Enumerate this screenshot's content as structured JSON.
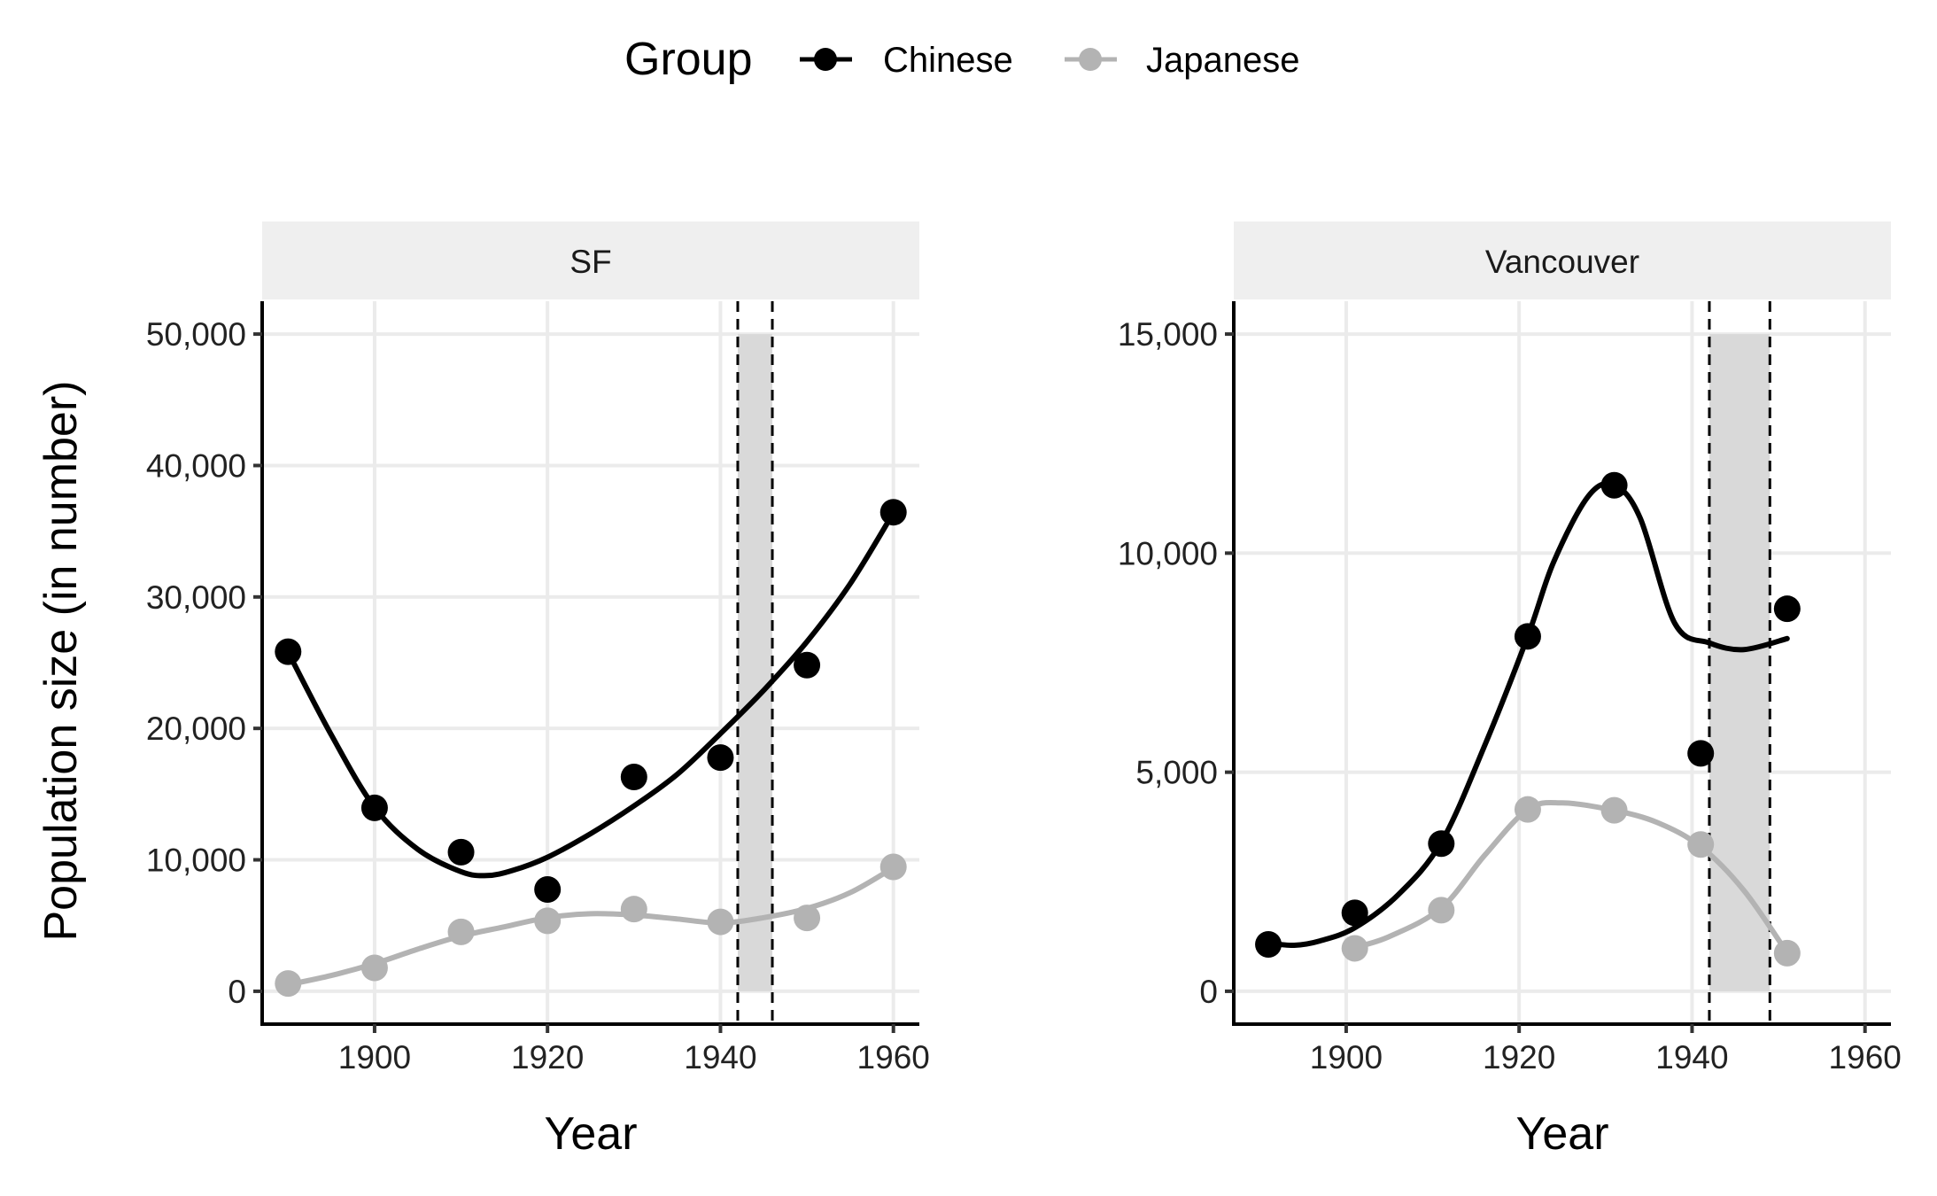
{
  "legend": {
    "title": "Group",
    "items": [
      {
        "label": "Chinese",
        "color": "#000000"
      },
      {
        "label": "Japanese",
        "color": "#b3b3b3"
      }
    ]
  },
  "ylabel": "Population size (in number)",
  "chart_data": [
    {
      "type": "scatter",
      "facet": "SF",
      "xlabel": "Year",
      "ylabel": "Population size (in number)",
      "xlim": [
        1887,
        1963
      ],
      "ylim": [
        -2500,
        52500
      ],
      "xticks": [
        1900,
        1920,
        1940,
        1960
      ],
      "yticks": [
        0,
        10000,
        20000,
        30000,
        40000,
        50000
      ],
      "ytick_labels": [
        "0",
        "10,000",
        "20,000",
        "30,000",
        "40,000",
        "50,000"
      ],
      "shaded_period": [
        1942,
        1946
      ],
      "grid": true,
      "series": [
        {
          "name": "Chinese",
          "color": "#000000",
          "x": [
            1890,
            1900,
            1910,
            1920,
            1930,
            1940,
            1950,
            1960
          ],
          "y": [
            25833,
            13954,
            10582,
            7744,
            16303,
            17782,
            24813,
            36445
          ],
          "smooth_x": [
            1890,
            1895,
            1900,
            1905,
            1910,
            1913,
            1916,
            1920,
            1925,
            1930,
            1935,
            1940,
            1945,
            1950,
            1955,
            1960
          ],
          "smooth_y": [
            25800,
            19500,
            14000,
            10800,
            9100,
            8800,
            9200,
            10200,
            12000,
            14100,
            16500,
            19600,
            22900,
            26600,
            31000,
            36400
          ]
        },
        {
          "name": "Japanese",
          "color": "#b3b3b3",
          "x": [
            1890,
            1900,
            1910,
            1920,
            1930,
            1940,
            1950,
            1960
          ],
          "y": [
            590,
            1781,
            4518,
            5358,
            6250,
            5280,
            5579,
            9464
          ],
          "smooth_x": [
            1890,
            1895,
            1900,
            1905,
            1910,
            1915,
            1920,
            1925,
            1930,
            1935,
            1940,
            1945,
            1950,
            1955,
            1960
          ],
          "smooth_y": [
            500,
            1200,
            2100,
            3200,
            4200,
            4900,
            5600,
            5900,
            5800,
            5500,
            5200,
            5600,
            6300,
            7500,
            9400
          ]
        }
      ]
    },
    {
      "type": "scatter",
      "facet": "Vancouver",
      "xlabel": "Year",
      "ylabel": "",
      "xlim": [
        1887,
        1963
      ],
      "ylim": [
        -750,
        15750
      ],
      "xticks": [
        1900,
        1920,
        1940,
        1960
      ],
      "yticks": [
        0,
        5000,
        10000,
        15000
      ],
      "ytick_labels": [
        "0",
        "5,000",
        "10,000",
        "15,000"
      ],
      "shaded_period": [
        1942,
        1949
      ],
      "grid": true,
      "series": [
        {
          "name": "Chinese",
          "color": "#000000",
          "x": [
            1891,
            1901,
            1911,
            1921,
            1931,
            1941,
            1951
          ],
          "y": [
            1070,
            1790,
            3370,
            8100,
            11550,
            5430,
            8730
          ],
          "smooth_x": [
            1891,
            1894,
            1897,
            1901,
            1906,
            1911,
            1916,
            1921,
            1924,
            1928,
            1931,
            1934,
            1938,
            1942,
            1946,
            1951
          ],
          "smooth_y": [
            1100,
            1050,
            1150,
            1450,
            2200,
            3400,
            5600,
            8100,
            9800,
            11300,
            11550,
            10800,
            8400,
            7950,
            7800,
            8050
          ]
        },
        {
          "name": "Japanese",
          "color": "#b3b3b3",
          "x": [
            1901,
            1911,
            1921,
            1931,
            1941,
            1951
          ],
          "y": [
            980,
            1850,
            4150,
            4130,
            3350,
            870
          ],
          "smooth_x": [
            1901,
            1905,
            1911,
            1916,
            1921,
            1925,
            1931,
            1936,
            1941,
            1946,
            1951
          ],
          "smooth_y": [
            1000,
            1250,
            1900,
            3100,
            4150,
            4300,
            4130,
            3850,
            3300,
            2300,
            880
          ]
        }
      ]
    }
  ]
}
